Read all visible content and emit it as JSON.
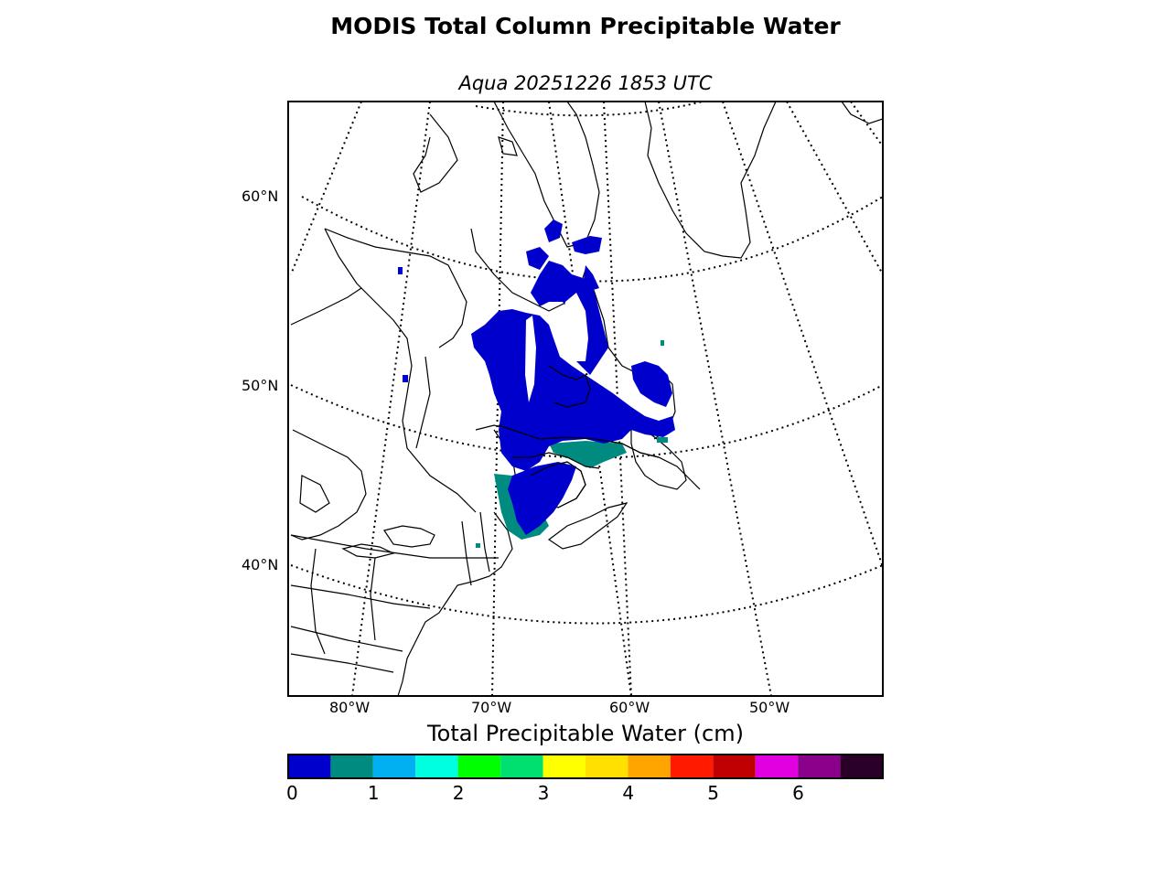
{
  "title": "MODIS Total Column Precipitable Water",
  "subtitle": "Aqua 20251226 1853 UTC",
  "lat_labels": [
    "60°N",
    "50°N",
    "40°N"
  ],
  "lon_labels": [
    "80°W",
    "70°W",
    "60°W",
    "50°W"
  ],
  "colorbar": {
    "label": "Total Precipitable Water (cm)",
    "ticks": [
      "0",
      "1",
      "2",
      "3",
      "4",
      "5",
      "6"
    ],
    "range": [
      0,
      7
    ],
    "bin_width": 0.5,
    "colors": [
      "#0000cc",
      "#008b80",
      "#00b0f0",
      "#00ffe0",
      "#00ff00",
      "#00e070",
      "#ffff00",
      "#ffe000",
      "#ffa500",
      "#ff1a00",
      "#c00000",
      "#e000e0",
      "#8b008b",
      "#2a0028"
    ]
  },
  "land_color": "#ffffff",
  "coastline_color": "#000000",
  "graticule_style": "dotted"
}
